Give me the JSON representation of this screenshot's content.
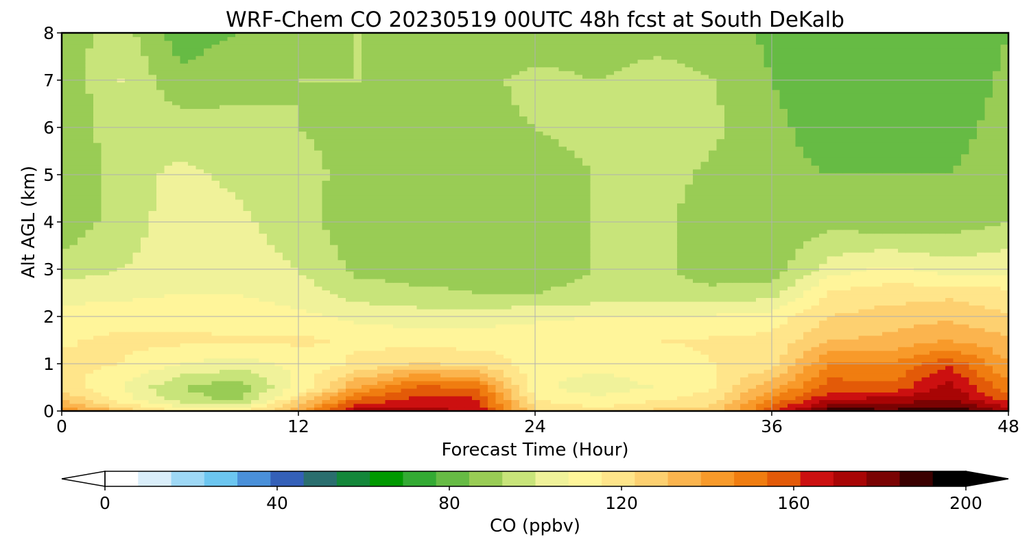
{
  "chart_data": {
    "type": "heatmap",
    "title": "WRF-Chem CO  20230519 00UTC 48h fcst at South DeKalb",
    "xlabel": "Forecast Time (Hour)",
    "ylabel": "Alt AGL (km)",
    "xlim": [
      0,
      48
    ],
    "ylim": [
      0,
      8
    ],
    "xticks": [
      0,
      12,
      24,
      36,
      48
    ],
    "yticks": [
      0,
      1,
      2,
      3,
      4,
      5,
      6,
      7,
      8
    ],
    "grid": true,
    "colorbar": {
      "label": "CO  (ppbv)",
      "orientation": "horizontal",
      "position": "bottom",
      "min": 0,
      "max": 200,
      "ticks": [
        0,
        40,
        80,
        120,
        160,
        200
      ],
      "extend": "both",
      "colors": [
        "#ffffff",
        "#daeefa",
        "#9ed8f5",
        "#6cc6f0",
        "#4a90d9",
        "#3460b8",
        "#2a6e6e",
        "#13873a",
        "#009900",
        "#33aa33",
        "#66bb44",
        "#99cc55",
        "#c8e47a",
        "#f0f29a",
        "#fff59a",
        "#ffe58a",
        "#fdd070",
        "#fbb44e",
        "#f89a2a",
        "#f07d10",
        "#e35a08",
        "#cc1010",
        "#a80505",
        "#7a0303",
        "#3a0000",
        "#000000"
      ]
    },
    "x": [
      0,
      3,
      6,
      9,
      12,
      15,
      18,
      21,
      24,
      27,
      30,
      33,
      36,
      39,
      42,
      45,
      48
    ],
    "y": [
      0,
      0.25,
      0.5,
      1,
      1.5,
      2,
      2.5,
      3,
      4,
      5,
      6,
      7,
      8
    ],
    "z": [
      [
        148,
        130,
        116,
        112,
        140,
        175,
        175,
        172,
        126,
        118,
        126,
        128,
        160,
        192,
        190,
        195,
        180
      ],
      [
        132,
        112,
        96,
        90,
        124,
        158,
        166,
        165,
        116,
        110,
        114,
        120,
        150,
        172,
        175,
        180,
        160
      ],
      [
        120,
        108,
        92,
        86,
        110,
        140,
        158,
        156,
        110,
        104,
        108,
        116,
        138,
        160,
        158,
        176,
        150
      ],
      [
        118,
        116,
        108,
        104,
        110,
        118,
        125,
        122,
        112,
        110,
        112,
        116,
        120,
        150,
        148,
        162,
        140
      ],
      [
        115,
        118,
        118,
        117,
        118,
        114,
        112,
        112,
        114,
        115,
        116,
        117,
        118,
        132,
        134,
        140,
        134
      ],
      [
        112,
        112,
        113,
        112,
        110,
        106,
        104,
        104,
        106,
        108,
        108,
        109,
        112,
        124,
        128,
        130,
        125
      ],
      [
        104,
        106,
        108,
        108,
        104,
        96,
        94,
        92,
        92,
        94,
        94,
        94,
        96,
        118,
        120,
        122,
        118
      ],
      [
        96,
        100,
        104,
        106,
        100,
        90,
        88,
        88,
        88,
        92,
        94,
        88,
        88,
        104,
        110,
        104,
        106
      ],
      [
        86,
        96,
        104,
        102,
        94,
        88,
        88,
        88,
        86,
        92,
        94,
        88,
        86,
        90,
        86,
        88,
        92
      ],
      [
        84,
        96,
        102,
        98,
        94,
        90,
        88,
        88,
        86,
        92,
        96,
        90,
        86,
        84,
        84,
        84,
        90
      ],
      [
        84,
        98,
        96,
        94,
        92,
        90,
        90,
        90,
        92,
        96,
        100,
        94,
        86,
        80,
        80,
        80,
        88
      ],
      [
        86,
        100,
        86,
        90,
        92,
        92,
        88,
        90,
        94,
        92,
        94,
        92,
        84,
        78,
        80,
        78,
        86
      ],
      [
        88,
        96,
        80,
        84,
        90,
        92,
        86,
        84,
        88,
        88,
        90,
        90,
        82,
        78,
        82,
        76,
        84
      ]
    ]
  }
}
